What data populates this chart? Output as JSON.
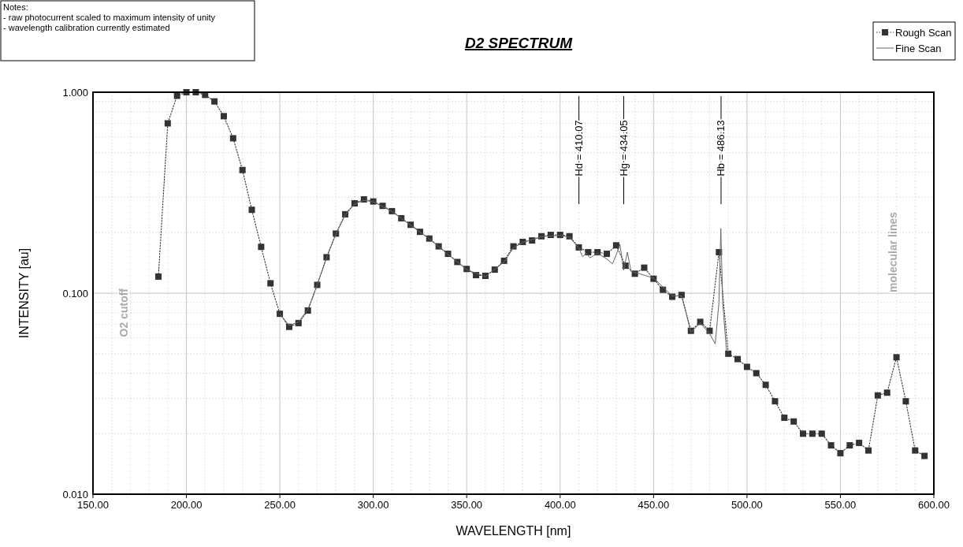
{
  "chart_data": {
    "type": "line",
    "title": "D2 SPECTRUM",
    "xlabel": "WAVELENGTH  [nm]",
    "ylabel": "INTENSITY  [au]",
    "annotations": [
      "Notes:",
      "- raw photocurrent scaled to maximum intensity of unity",
      "- wavelength calibration currently estimated",
      "O2 cutoff",
      "molecular lines"
    ],
    "xlim": [
      150,
      600
    ],
    "xticks": [
      {
        "value": 150,
        "label": "150.00"
      },
      {
        "value": 200,
        "label": "200.00"
      },
      {
        "value": 250,
        "label": "250.00"
      },
      {
        "value": 300,
        "label": "300.00"
      },
      {
        "value": 350,
        "label": "350.00"
      },
      {
        "value": 400,
        "label": "400.00"
      },
      {
        "value": 450,
        "label": "450.00"
      },
      {
        "value": 500,
        "label": "500.00"
      },
      {
        "value": 550,
        "label": "550.00"
      },
      {
        "value": 600,
        "label": "600.00"
      }
    ],
    "ylim": [
      0.01,
      1
    ],
    "yticks": [
      {
        "value": 0.01,
        "label": "0.010"
      },
      {
        "value": 0.1,
        "label": "0.100"
      },
      {
        "value": 1,
        "label": "1.000"
      }
    ],
    "log": "y",
    "grid": true,
    "legend": "top right",
    "ref_lines": [
      {
        "axis": "x",
        "value": 410.07,
        "label": "Hd = 410.07"
      },
      {
        "axis": "x",
        "value": 434.05,
        "label": "Hg = 434.05"
      },
      {
        "axis": "x",
        "value": 486.13,
        "label": "Hb = 486.13"
      }
    ],
    "series": [
      {
        "name": "Rough Scan",
        "color": "#333333",
        "marker": "square",
        "line_style": "dotted",
        "x": [
          185,
          190,
          195,
          200,
          205,
          210,
          215,
          220,
          225,
          230,
          235,
          240,
          245,
          250,
          255,
          260,
          265,
          270,
          275,
          280,
          285,
          290,
          295,
          300,
          305,
          310,
          315,
          320,
          325,
          330,
          335,
          340,
          345,
          350,
          355,
          360,
          365,
          370,
          375,
          380,
          385,
          390,
          395,
          400,
          405,
          410,
          415,
          420,
          425,
          430,
          435,
          440,
          445,
          450,
          455,
          460,
          465,
          470,
          475,
          480,
          485,
          490,
          495,
          500,
          505,
          510,
          515,
          520,
          525,
          530,
          535,
          540,
          545,
          550,
          555,
          560,
          565,
          570,
          575,
          580,
          585,
          590,
          595
        ],
        "values": [
          0.121,
          0.7,
          0.96,
          1.0,
          1.0,
          0.97,
          0.9,
          0.76,
          0.59,
          0.41,
          0.26,
          0.17,
          0.112,
          0.079,
          0.068,
          0.071,
          0.082,
          0.11,
          0.151,
          0.198,
          0.247,
          0.28,
          0.293,
          0.286,
          0.272,
          0.256,
          0.236,
          0.219,
          0.202,
          0.187,
          0.171,
          0.157,
          0.143,
          0.132,
          0.123,
          0.122,
          0.131,
          0.145,
          0.171,
          0.18,
          0.183,
          0.192,
          0.195,
          0.195,
          0.192,
          0.169,
          0.16,
          0.16,
          0.157,
          0.173,
          0.137,
          0.125,
          0.134,
          0.118,
          0.104,
          0.096,
          0.098,
          0.065,
          0.072,
          0.065,
          0.16,
          0.05,
          0.047,
          0.043,
          0.04,
          0.035,
          0.029,
          0.024,
          0.023,
          0.02,
          0.02,
          0.02,
          0.0175,
          0.016,
          0.0175,
          0.018,
          0.0165,
          0.031,
          0.032,
          0.048,
          0.029,
          0.0165,
          0.0155
        ]
      },
      {
        "name": "Fine Scan",
        "color": "#666666",
        "marker": "none",
        "line_style": "solid",
        "x": [
          250,
          255,
          260,
          265,
          270,
          275,
          280,
          285,
          290,
          295,
          300,
          310,
          320,
          330,
          340,
          350,
          360,
          370,
          375,
          380,
          390,
          400,
          405,
          410,
          412,
          414,
          416,
          420,
          425,
          428,
          430,
          432,
          434,
          436,
          438,
          440,
          450,
          460,
          465,
          470,
          475,
          480,
          483,
          485,
          486,
          487,
          489,
          490
        ],
        "values": [
          0.079,
          0.069,
          0.072,
          0.083,
          0.11,
          0.15,
          0.197,
          0.245,
          0.278,
          0.29,
          0.285,
          0.255,
          0.218,
          0.186,
          0.156,
          0.131,
          0.121,
          0.143,
          0.168,
          0.179,
          0.191,
          0.194,
          0.19,
          0.168,
          0.152,
          0.158,
          0.15,
          0.158,
          0.148,
          0.14,
          0.155,
          0.175,
          0.13,
          0.16,
          0.128,
          0.127,
          0.119,
          0.097,
          0.097,
          0.064,
          0.071,
          0.063,
          0.056,
          0.09,
          0.21,
          0.09,
          0.052,
          0.051
        ]
      }
    ]
  }
}
